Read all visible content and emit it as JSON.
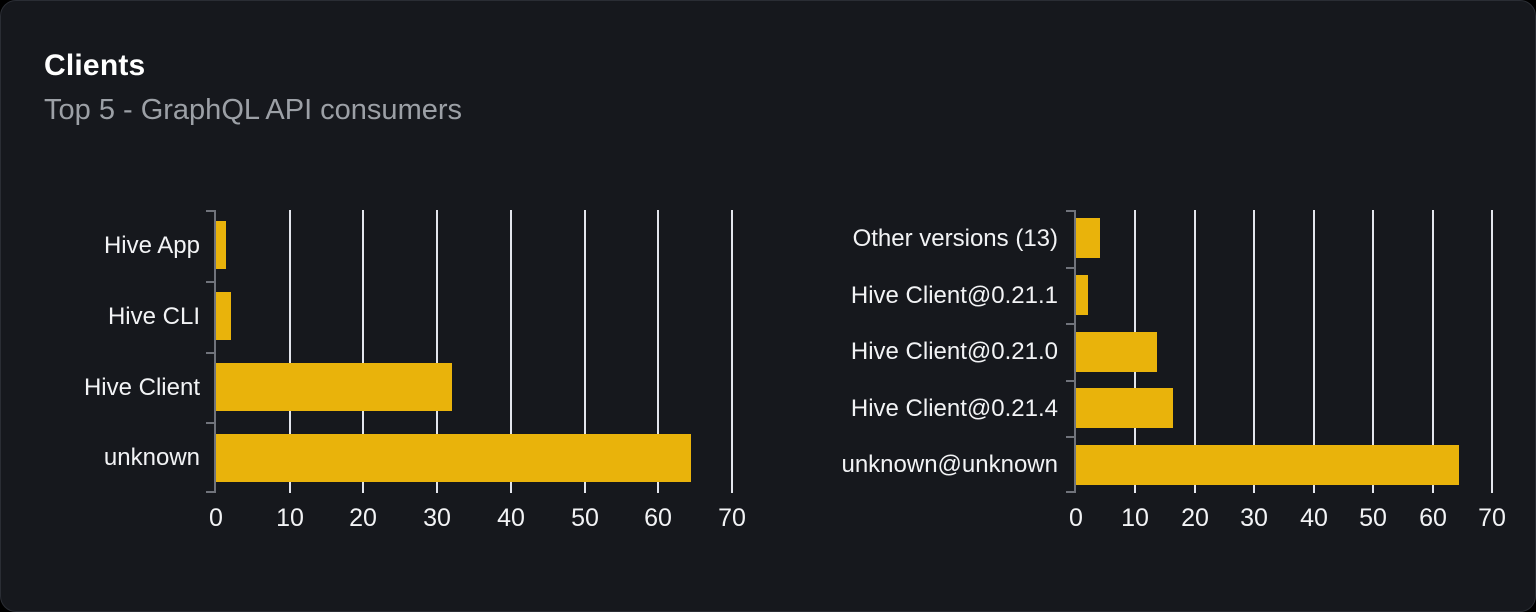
{
  "card": {
    "title": "Clients",
    "subtitle": "Top 5 - GraphQL API consumers"
  },
  "colors": {
    "background": "#16181d",
    "outside": "#000000",
    "card_border": "#2a2d34",
    "bar": "#e9b30b",
    "gridline": "#e3e5ec",
    "axis_line": "#70737b",
    "title_text": "#ffffff",
    "subtitle_text": "#9ca0a6",
    "label_text": "#f2f3f5"
  },
  "chart_data": [
    {
      "type": "bar",
      "orientation": "horizontal",
      "title": "",
      "xlabel": "",
      "ylabel": "",
      "categories": [
        "Hive App",
        "Hive CLI",
        "Hive Client",
        "unknown"
      ],
      "values": [
        1.3,
        2,
        32,
        64.4
      ],
      "xlim": [
        0,
        70
      ],
      "xticks": [
        0,
        10,
        20,
        30,
        40,
        50,
        60,
        70
      ],
      "grid": true,
      "legend": false
    },
    {
      "type": "bar",
      "orientation": "horizontal",
      "title": "",
      "xlabel": "",
      "ylabel": "",
      "categories": [
        "Other versions (13)",
        "Hive Client@0.21.1",
        "Hive Client@0.21.0",
        "Hive Client@0.21.4",
        "unknown@unknown"
      ],
      "values": [
        4,
        2,
        13.7,
        16.4,
        64.4
      ],
      "xlim": [
        0,
        70
      ],
      "xticks": [
        0,
        10,
        20,
        30,
        40,
        50,
        60,
        70
      ],
      "grid": true,
      "legend": false
    }
  ]
}
